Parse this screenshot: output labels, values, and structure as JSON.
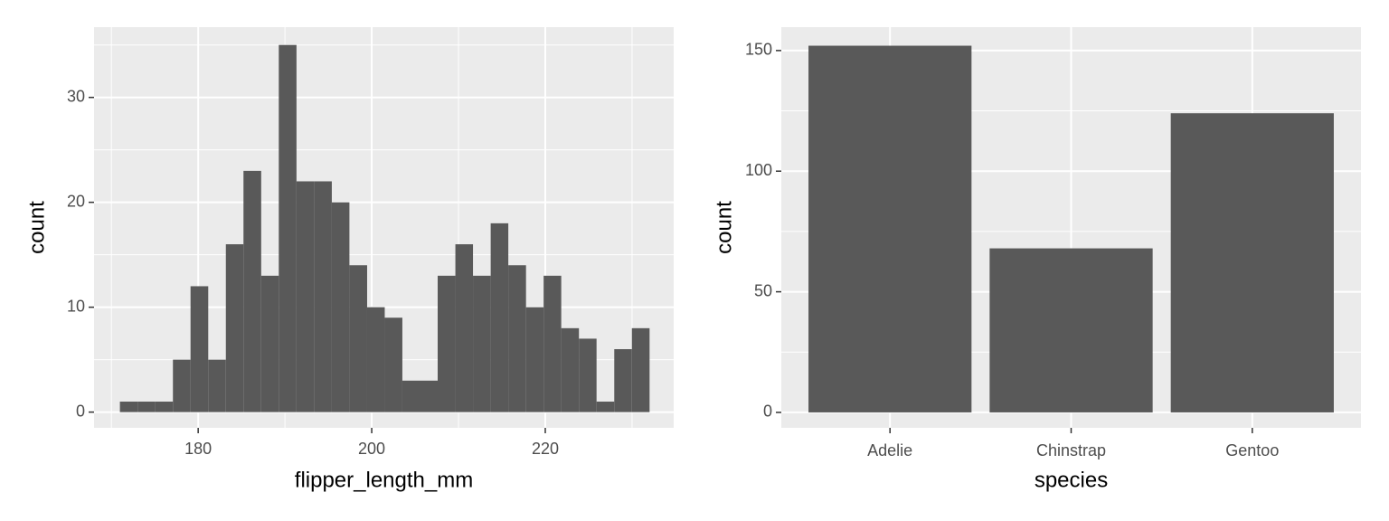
{
  "chart_data": [
    {
      "type": "histogram",
      "x_label": "flipper_length_mm",
      "y_label": "count",
      "color": "#595959",
      "bins": [
        170.98,
        173.02,
        175.05,
        177.09,
        179.12,
        181.16,
        183.19,
        185.22,
        187.26,
        189.29,
        191.33,
        193.36,
        195.4,
        197.43,
        199.47,
        201.5,
        203.53,
        205.57,
        207.6,
        209.64,
        211.67,
        213.71,
        215.74,
        217.78,
        219.81,
        221.84,
        223.88,
        225.91,
        227.95,
        229.98,
        232.02
      ],
      "values": [
        1,
        1,
        1,
        5,
        12,
        5,
        16,
        23,
        13,
        35,
        22,
        22,
        20,
        14,
        10,
        9,
        3,
        3,
        13,
        16,
        13,
        18,
        14,
        10,
        13,
        8,
        7,
        1,
        6,
        8
      ],
      "xlim": [
        168.0,
        234.8
      ],
      "ylim": [
        -1.5,
        36.7
      ],
      "xticks": [
        180,
        200,
        220
      ],
      "yticks": [
        0,
        10,
        20,
        30
      ],
      "xminor": [
        170,
        190,
        210,
        230
      ],
      "yminor": [
        5,
        15,
        25,
        35
      ],
      "grid": true
    },
    {
      "type": "bar",
      "x_label": "species",
      "y_label": "count",
      "color": "#595959",
      "categories": [
        "Adelie",
        "Chinstrap",
        "Gentoo"
      ],
      "values": [
        152,
        68,
        124
      ],
      "ylim": [
        -6.4,
        159.7
      ],
      "yticks": [
        0,
        50,
        100,
        150
      ],
      "yminor": [
        25,
        75,
        125
      ],
      "grid": true
    }
  ]
}
